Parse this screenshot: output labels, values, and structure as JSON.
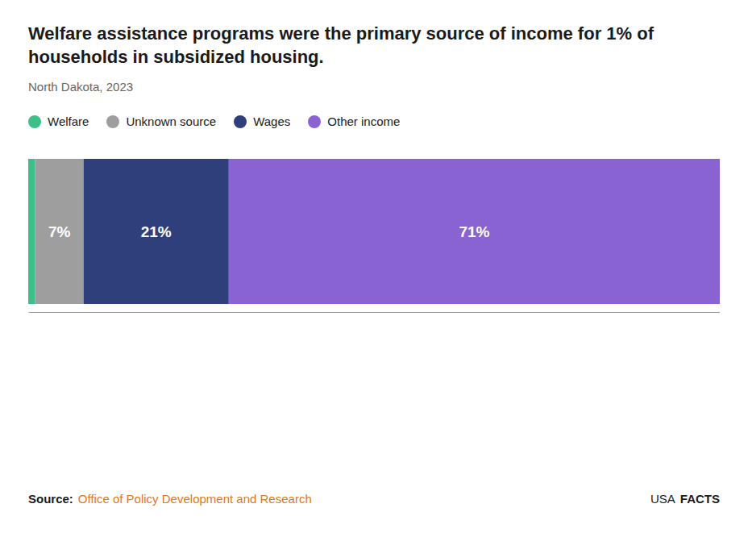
{
  "chart_data": {
    "type": "bar",
    "orientation": "horizontal",
    "stacked": true,
    "title": "Welfare assistance programs were the primary source of income for 1% of households in subsidized housing.",
    "subtitle": "North Dakota, 2023",
    "categories": [
      null
    ],
    "series": [
      {
        "name": "Welfare",
        "color": "#3dbf8a",
        "values": [
          1
        ]
      },
      {
        "name": "Unknown source",
        "color": "#9e9e9e",
        "values": [
          7
        ],
        "value_labels": [
          "7%"
        ]
      },
      {
        "name": "Wages",
        "color": "#2e3f7c",
        "values": [
          21
        ],
        "value_labels": [
          "21%"
        ]
      },
      {
        "name": "Other income",
        "color": "#8a63d2",
        "values": [
          71
        ],
        "value_labels": [
          "71%"
        ]
      }
    ],
    "xlim": [
      0,
      100
    ],
    "tick_labels": false,
    "grid": false,
    "legend": "top-left",
    "data_labels": true,
    "annotations": [
      {
        "text": "Source:"
      },
      {
        "text": "Office of Policy Development and Research",
        "color": "#e07820"
      },
      {
        "text": "USA"
      },
      {
        "text": "FACTS"
      }
    ]
  }
}
